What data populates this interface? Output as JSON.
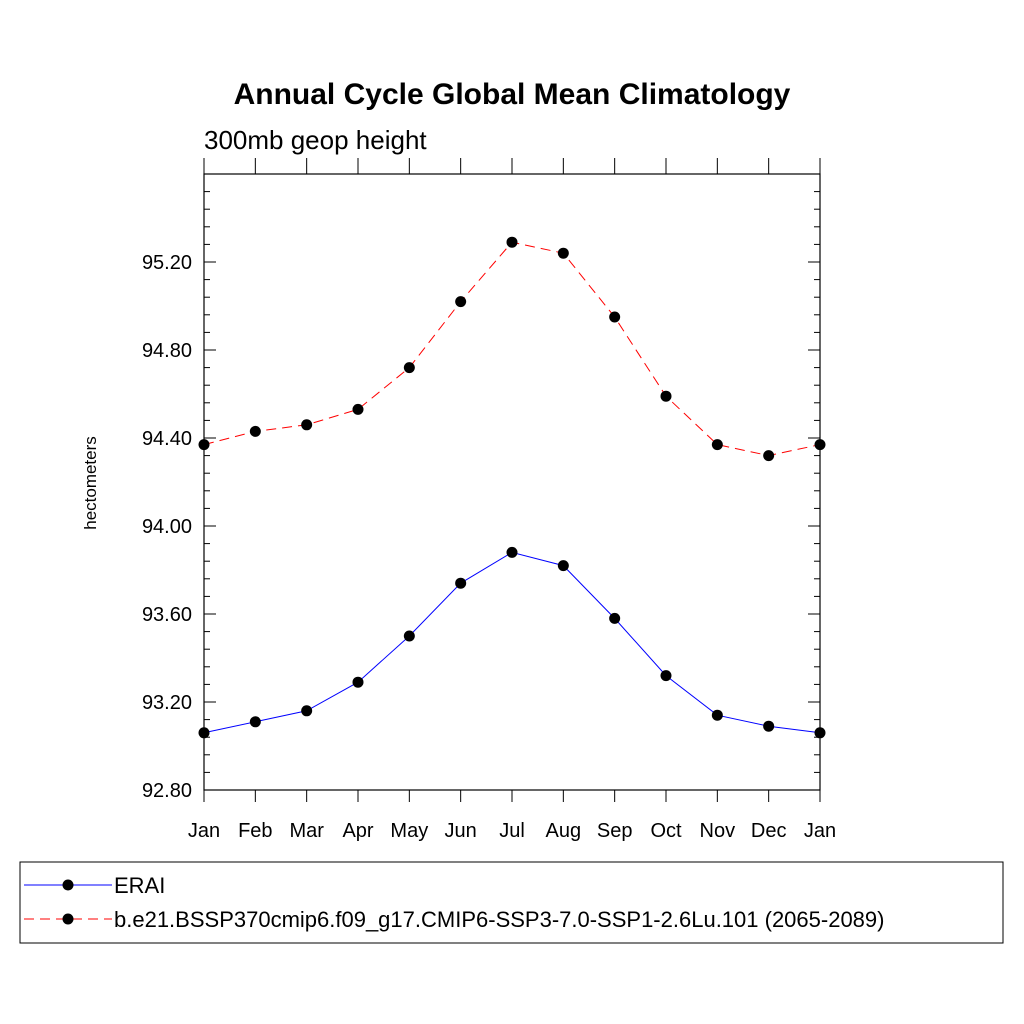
{
  "chart_data": {
    "type": "line",
    "title": "Annual Cycle Global Mean Climatology",
    "subtitle": "300mb geop height",
    "xlabel": "",
    "ylabel": "hectometers",
    "categories": [
      "Jan",
      "Feb",
      "Mar",
      "Apr",
      "May",
      "Jun",
      "Jul",
      "Aug",
      "Sep",
      "Oct",
      "Nov",
      "Dec",
      "Jan"
    ],
    "ylim": [
      92.8,
      95.6
    ],
    "yticks": [
      "92.80",
      "93.20",
      "93.60",
      "94.00",
      "94.40",
      "94.80",
      "95.20"
    ],
    "series": [
      {
        "name": "ERAI",
        "values": [
          93.06,
          93.11,
          93.16,
          93.29,
          93.5,
          93.74,
          93.88,
          93.82,
          93.58,
          93.32,
          93.14,
          93.09,
          93.06
        ],
        "color": "#0000ff",
        "dash": "solid"
      },
      {
        "name": "b.e21.BSSP370cmip6.f09_g17.CMIP6-SSP3-7.0-SSP1-2.6Lu.101 (2065-2089)",
        "values": [
          94.37,
          94.43,
          94.46,
          94.53,
          94.72,
          95.02,
          95.29,
          95.24,
          94.95,
          94.59,
          94.37,
          94.32,
          94.37
        ],
        "color": "#ff0000",
        "dash": "dashed"
      }
    ],
    "marker_color": "#000000",
    "legend_position": "bottom"
  }
}
